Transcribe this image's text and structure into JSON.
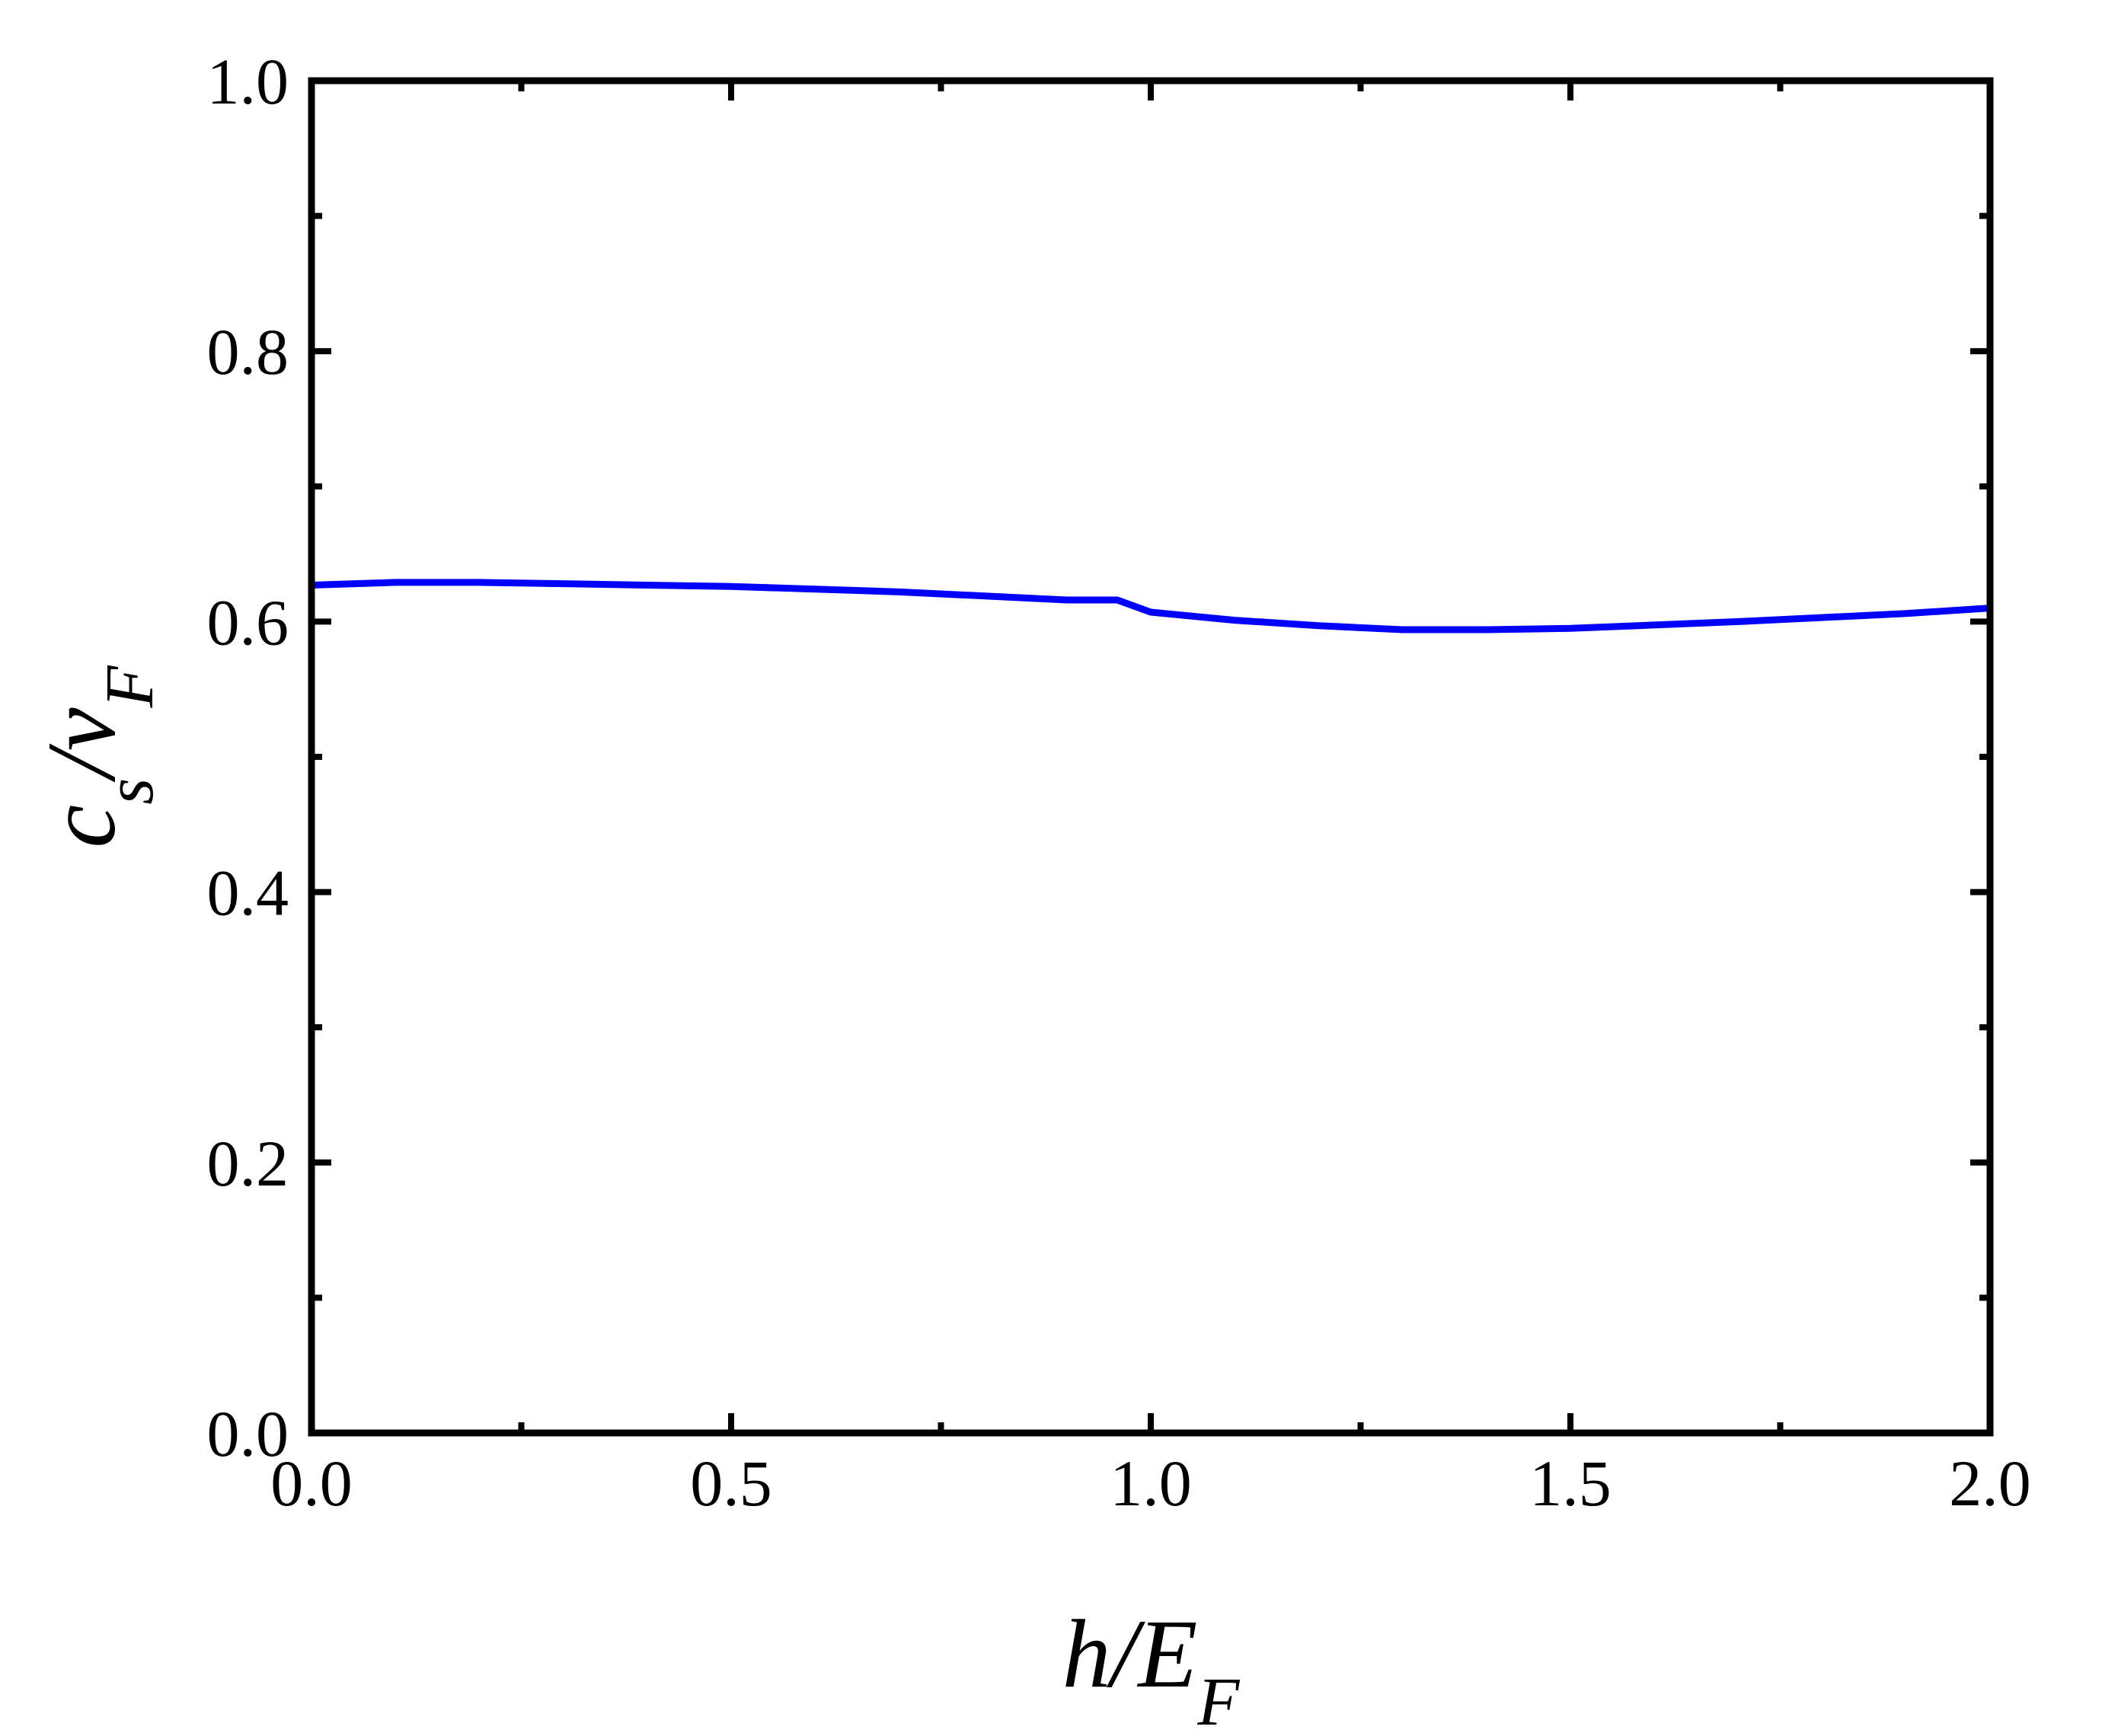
{
  "chart_data": {
    "type": "line",
    "xlabel": [
      {
        "text": "h/E"
      },
      {
        "text": "F",
        "sub": true
      }
    ],
    "ylabel": [
      {
        "text": "c"
      },
      {
        "text": "s",
        "sub": true
      },
      {
        "text": "/v"
      },
      {
        "text": "F",
        "sub": true
      }
    ],
    "x": [
      0,
      0.1,
      0.2,
      0.4,
      0.5,
      0.7,
      0.9,
      0.96,
      1.0,
      1.1,
      1.2,
      1.3,
      1.4,
      1.5,
      1.7,
      1.9,
      2.0
    ],
    "series": [
      {
        "color": "#0000ff",
        "values": [
          0.627,
          0.629,
          0.629,
          0.627,
          0.626,
          0.622,
          0.616,
          0.616,
          0.607,
          0.601,
          0.597,
          0.594,
          0.594,
          0.595,
          0.6,
          0.606,
          0.61
        ]
      }
    ],
    "xlim": [
      0,
      2
    ],
    "ylim": [
      0,
      1
    ],
    "xticks": [
      {
        "value": 0,
        "label": "0.0"
      },
      {
        "value": 0.5,
        "label": "0.5"
      },
      {
        "value": 1,
        "label": "1.0"
      },
      {
        "value": 1.5,
        "label": "1.5"
      },
      {
        "value": 2,
        "label": "2.0"
      }
    ],
    "yticks": [
      {
        "value": 0,
        "label": "0.0"
      },
      {
        "value": 0.2,
        "label": "0.2"
      },
      {
        "value": 0.4,
        "label": "0.4"
      },
      {
        "value": 0.6,
        "label": "0.6"
      },
      {
        "value": 0.8,
        "label": "0.8"
      },
      {
        "value": 1,
        "label": "1.0"
      }
    ],
    "grid": false
  }
}
